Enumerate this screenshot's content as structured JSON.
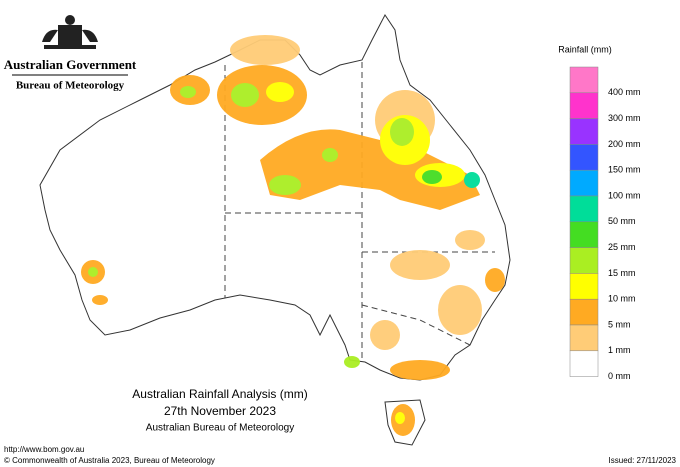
{
  "header": {
    "government": "Australian Government",
    "bureau": "Bureau of Meteorology"
  },
  "legend": {
    "title": "Rainfall (mm)",
    "items": [
      {
        "label": "400 mm",
        "color": "#ff77c8"
      },
      {
        "label": "300 mm",
        "color": "#ff33cc"
      },
      {
        "label": "200 mm",
        "color": "#9933ff"
      },
      {
        "label": "150 mm",
        "color": "#3355ff"
      },
      {
        "label": "100 mm",
        "color": "#00aaff"
      },
      {
        "label": "50 mm",
        "color": "#00dd99"
      },
      {
        "label": "25 mm",
        "color": "#44dd22"
      },
      {
        "label": "15 mm",
        "color": "#aaee22"
      },
      {
        "label": "10 mm",
        "color": "#ffff00"
      },
      {
        "label": "5 mm",
        "color": "#ffaa22"
      },
      {
        "label": "1 mm",
        "color": "#ffcc77"
      },
      {
        "label": "0 mm",
        "color": "#ffffff"
      }
    ]
  },
  "map": {
    "title": "Australian Rainfall Analysis (mm)",
    "date": "27th November 2023",
    "source": "Australian Bureau of Meteorology"
  },
  "footer": {
    "url": "http://www.bom.gov.au",
    "copyright": "© Commonwealth of Australia 2023, Bureau of Meteorology",
    "issued": "Issued: 27/11/2023"
  }
}
